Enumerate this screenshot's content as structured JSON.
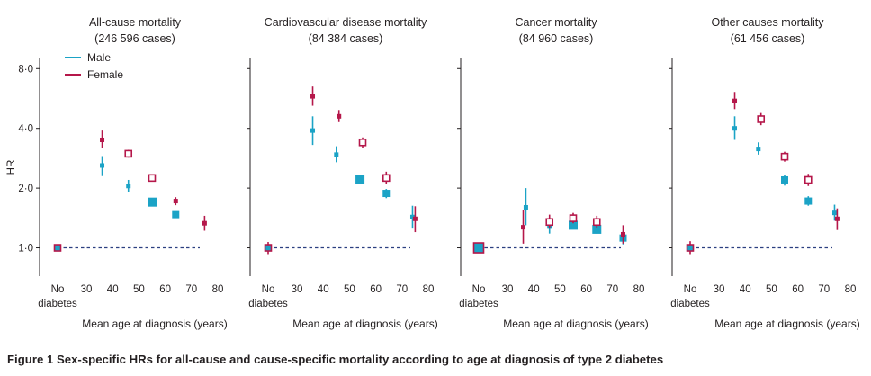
{
  "figure": {
    "caption_label": "Figure 1",
    "caption_text": "Sex-specific HRs for all-cause and cause-specific mortality according to age at diagnosis of type 2 diabetes"
  },
  "legend": {
    "male": "Male",
    "female": "Female"
  },
  "colors": {
    "male": "#1ba3c6",
    "female": "#b5174a",
    "reference_line": "#2b3f80",
    "axis": "#231f20"
  },
  "chart_data": [
    {
      "type": "scatter",
      "title": "All-cause mortality",
      "subtitle": "(246 596 cases)",
      "ylabel": "HR",
      "xlabel": "Mean age at diagnosis (years)",
      "yscale": "log",
      "ylim": [
        0.72,
        9.0
      ],
      "y_ticks": [
        1,
        2,
        4,
        8
      ],
      "y_tick_labels": [
        "1·0",
        "2·0",
        "4·0",
        "8·0"
      ],
      "x_ticks": [
        "No diabetes",
        "30",
        "40",
        "50",
        "60",
        "70",
        "80"
      ],
      "reference": {
        "label": "No diabetes",
        "x": 0,
        "hr": 1.0,
        "lo": 0.96,
        "hi": 1.04
      },
      "series": [
        {
          "name": "Male",
          "points": [
            {
              "age": 36,
              "hr": 2.6,
              "lo": 2.3,
              "hi": 2.9,
              "size": "small"
            },
            {
              "age": 46,
              "hr": 2.05,
              "lo": 1.92,
              "hi": 2.2,
              "size": "small"
            },
            {
              "age": 55,
              "hr": 1.7,
              "lo": 1.64,
              "hi": 1.76,
              "size": "large"
            },
            {
              "age": 64,
              "hr": 1.47,
              "lo": 1.43,
              "hi": 1.51,
              "size": "medium"
            }
          ]
        },
        {
          "name": "Female",
          "points": [
            {
              "age": 36,
              "hr": 3.5,
              "lo": 3.2,
              "hi": 3.9,
              "size": "small"
            },
            {
              "age": 46,
              "hr": 2.98,
              "lo": 2.85,
              "hi": 3.12,
              "size": "open"
            },
            {
              "age": 55,
              "hr": 2.25,
              "lo": 2.17,
              "hi": 2.33,
              "size": "open"
            },
            {
              "age": 64,
              "hr": 1.72,
              "lo": 1.64,
              "hi": 1.8,
              "size": "small"
            },
            {
              "age": 75,
              "hr": 1.33,
              "lo": 1.22,
              "hi": 1.45,
              "size": "small"
            }
          ]
        }
      ]
    },
    {
      "type": "scatter",
      "title": "Cardiovascular disease mortality",
      "subtitle": "(84 384 cases)",
      "xlabel": "Mean age at diagnosis (years)",
      "yscale": "log",
      "ylim": [
        0.72,
        9.0
      ],
      "x_ticks": [
        "No diabetes",
        "30",
        "40",
        "50",
        "60",
        "70",
        "80"
      ],
      "reference": {
        "label": "No diabetes",
        "x": 0,
        "hr": 1.0,
        "lo": 0.93,
        "hi": 1.07
      },
      "series": [
        {
          "name": "Male",
          "points": [
            {
              "age": 36,
              "hr": 3.9,
              "lo": 3.3,
              "hi": 4.6,
              "size": "small"
            },
            {
              "age": 45,
              "hr": 2.95,
              "lo": 2.7,
              "hi": 3.25,
              "size": "small"
            },
            {
              "age": 54,
              "hr": 2.22,
              "lo": 2.12,
              "hi": 2.32,
              "size": "large"
            },
            {
              "age": 64,
              "hr": 1.88,
              "lo": 1.78,
              "hi": 1.98,
              "size": "medium"
            },
            {
              "age": 74,
              "hr": 1.43,
              "lo": 1.25,
              "hi": 1.63,
              "size": "small"
            }
          ]
        },
        {
          "name": "Female",
          "points": [
            {
              "age": 36,
              "hr": 5.8,
              "lo": 5.2,
              "hi": 6.5,
              "size": "small"
            },
            {
              "age": 46,
              "hr": 4.6,
              "lo": 4.3,
              "hi": 4.95,
              "size": "small"
            },
            {
              "age": 55,
              "hr": 3.4,
              "lo": 3.2,
              "hi": 3.6,
              "size": "open"
            },
            {
              "age": 64,
              "hr": 2.25,
              "lo": 2.1,
              "hi": 2.42,
              "size": "open"
            },
            {
              "age": 75,
              "hr": 1.4,
              "lo": 1.2,
              "hi": 1.62,
              "size": "small"
            }
          ]
        }
      ]
    },
    {
      "type": "scatter",
      "title": "Cancer mortality",
      "subtitle": "(84 960 cases)",
      "xlabel": "Mean age at diagnosis (years)",
      "yscale": "log",
      "ylim": [
        0.72,
        9.0
      ],
      "x_ticks": [
        "No diabetes",
        "30",
        "40",
        "50",
        "60",
        "70",
        "80"
      ],
      "reference": {
        "label": "No diabetes",
        "x": 0,
        "hr": 1.0,
        "lo": 0.97,
        "hi": 1.03
      },
      "series": [
        {
          "name": "Male",
          "points": [
            {
              "age": 37,
              "hr": 1.6,
              "lo": 1.3,
              "hi": 2.0,
              "size": "small"
            },
            {
              "age": 46,
              "hr": 1.28,
              "lo": 1.18,
              "hi": 1.38,
              "size": "small"
            },
            {
              "age": 55,
              "hr": 1.3,
              "lo": 1.24,
              "hi": 1.36,
              "size": "large"
            },
            {
              "age": 64,
              "hr": 1.24,
              "lo": 1.18,
              "hi": 1.3,
              "size": "large"
            },
            {
              "age": 74,
              "hr": 1.12,
              "lo": 1.04,
              "hi": 1.21,
              "size": "medium"
            }
          ]
        },
        {
          "name": "Female",
          "points": [
            {
              "age": 36,
              "hr": 1.27,
              "lo": 1.05,
              "hi": 1.55,
              "size": "small"
            },
            {
              "age": 46,
              "hr": 1.35,
              "lo": 1.25,
              "hi": 1.47,
              "size": "open"
            },
            {
              "age": 55,
              "hr": 1.41,
              "lo": 1.33,
              "hi": 1.5,
              "size": "open"
            },
            {
              "age": 64,
              "hr": 1.35,
              "lo": 1.26,
              "hi": 1.45,
              "size": "open"
            },
            {
              "age": 74,
              "hr": 1.17,
              "lo": 1.05,
              "hi": 1.3,
              "size": "small"
            }
          ]
        }
      ]
    },
    {
      "type": "scatter",
      "title": "Other causes mortality",
      "subtitle": "(61 456 cases)",
      "xlabel": "Mean age at diagnosis (years)",
      "yscale": "log",
      "ylim": [
        0.72,
        9.0
      ],
      "x_ticks": [
        "No diabetes",
        "30",
        "40",
        "50",
        "60",
        "70",
        "80"
      ],
      "reference": {
        "label": "No diabetes",
        "x": 0,
        "hr": 1.0,
        "lo": 0.93,
        "hi": 1.08
      },
      "series": [
        {
          "name": "Male",
          "points": [
            {
              "age": 36,
              "hr": 4.0,
              "lo": 3.5,
              "hi": 4.6,
              "size": "small"
            },
            {
              "age": 45,
              "hr": 3.15,
              "lo": 2.95,
              "hi": 3.4,
              "size": "small"
            },
            {
              "age": 55,
              "hr": 2.2,
              "lo": 2.06,
              "hi": 2.34,
              "size": "medium"
            },
            {
              "age": 64,
              "hr": 1.72,
              "lo": 1.63,
              "hi": 1.82,
              "size": "medium"
            },
            {
              "age": 74,
              "hr": 1.5,
              "lo": 1.37,
              "hi": 1.65,
              "size": "small"
            }
          ]
        },
        {
          "name": "Female",
          "points": [
            {
              "age": 36,
              "hr": 5.5,
              "lo": 5.0,
              "hi": 6.1,
              "size": "small"
            },
            {
              "age": 46,
              "hr": 4.45,
              "lo": 4.15,
              "hi": 4.78,
              "size": "open"
            },
            {
              "age": 55,
              "hr": 2.88,
              "lo": 2.72,
              "hi": 3.05,
              "size": "open"
            },
            {
              "age": 64,
              "hr": 2.2,
              "lo": 2.05,
              "hi": 2.36,
              "size": "open"
            },
            {
              "age": 75,
              "hr": 1.4,
              "lo": 1.23,
              "hi": 1.58,
              "size": "small"
            }
          ]
        }
      ]
    }
  ]
}
